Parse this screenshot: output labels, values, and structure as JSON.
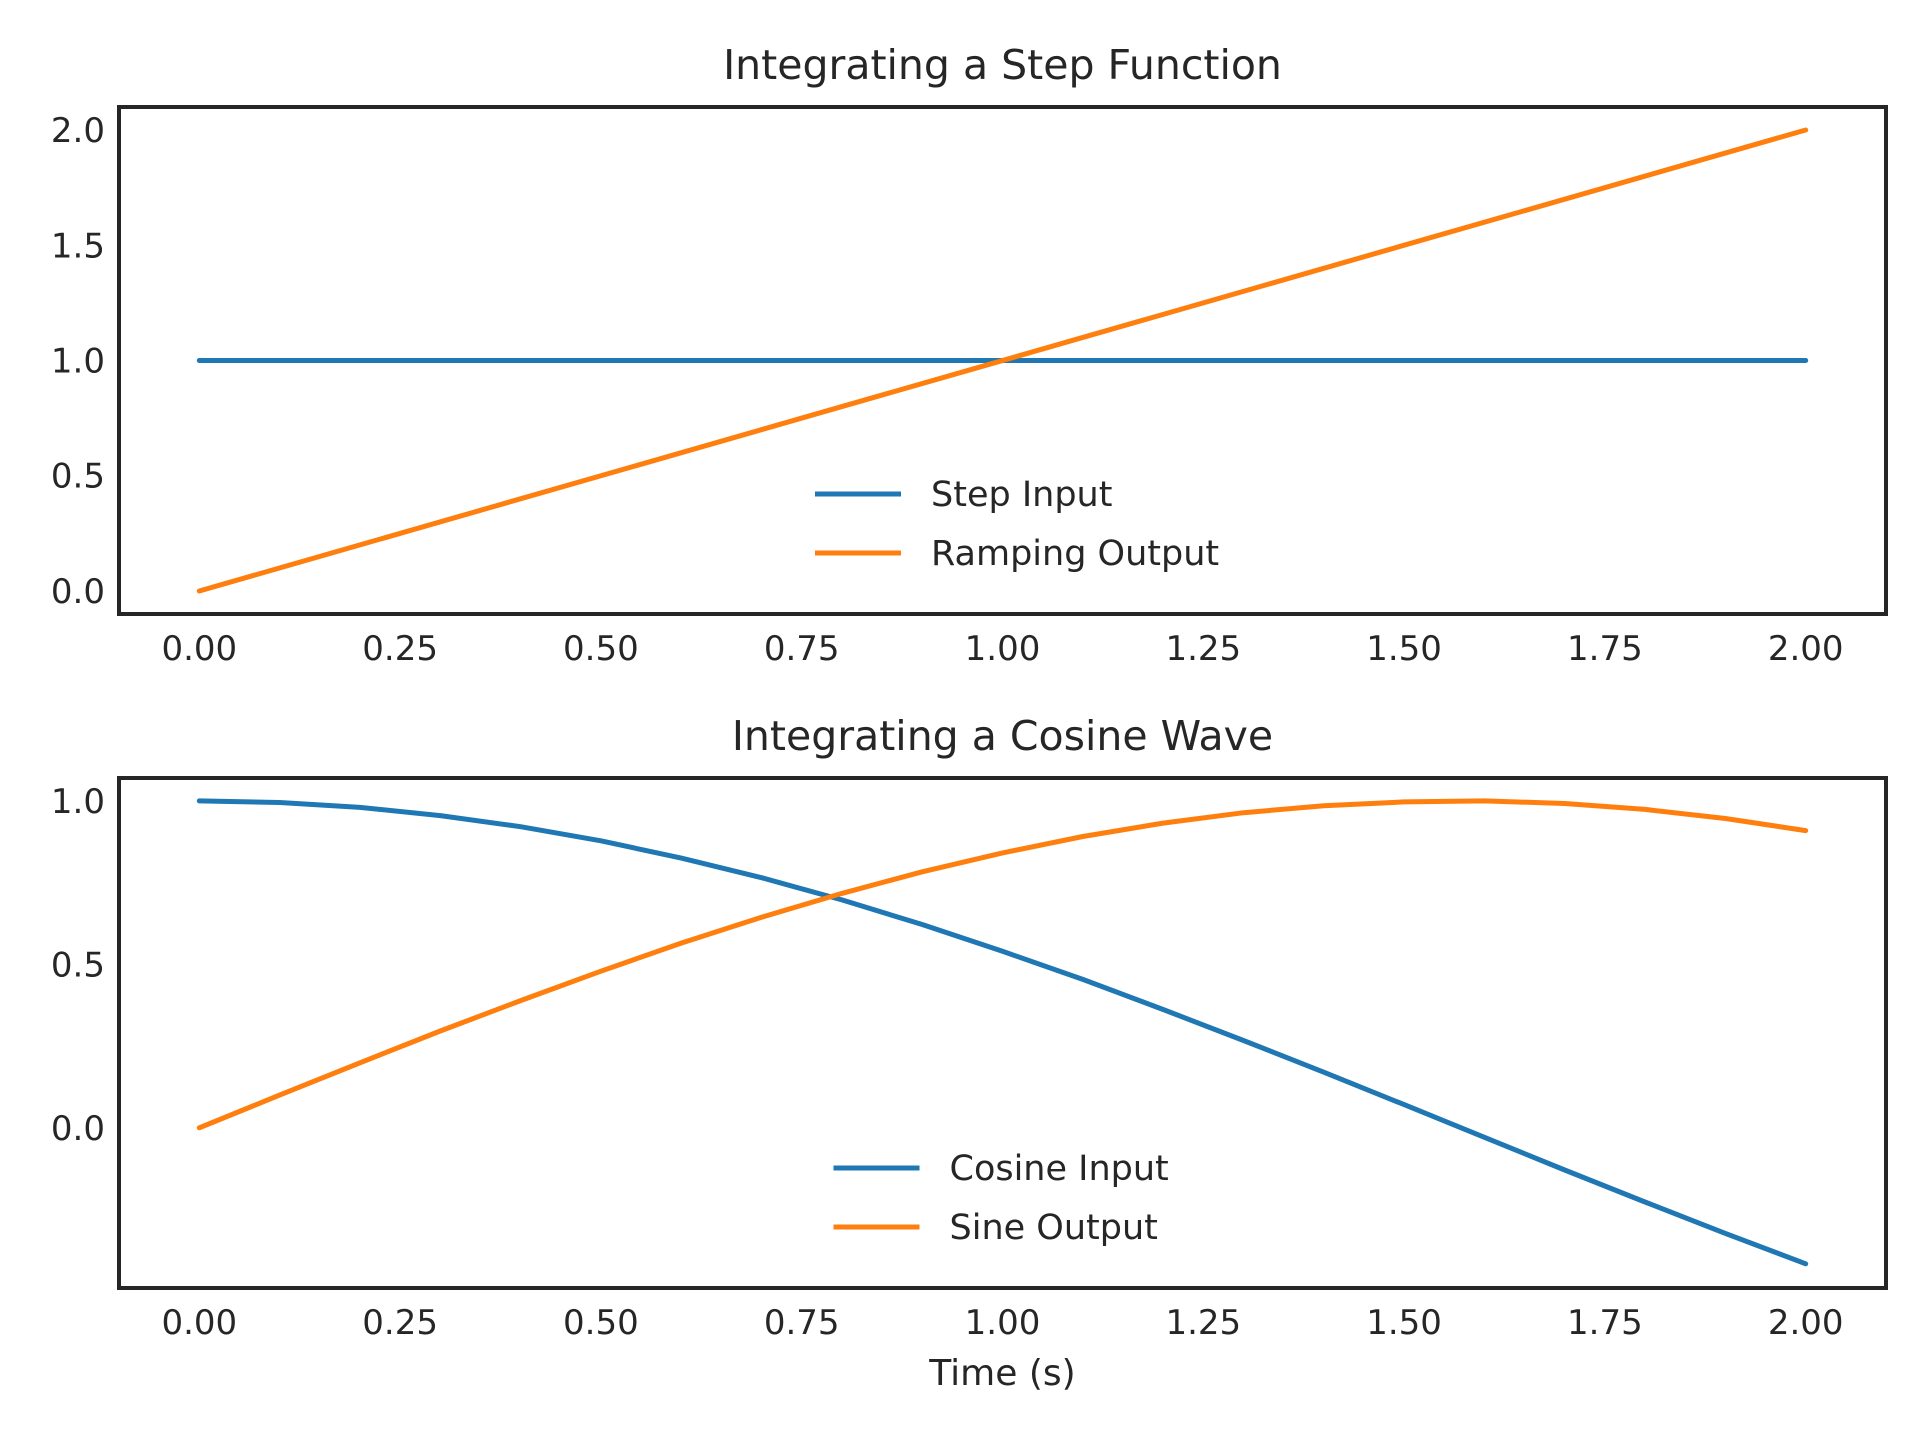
{
  "chart_data": [
    {
      "type": "line",
      "title": "Integrating a Step Function",
      "xlabel": "",
      "ylabel": "",
      "xlim": [
        -0.1,
        2.1
      ],
      "ylim": [
        -0.1,
        2.1
      ],
      "xticks": [
        0.0,
        0.25,
        0.5,
        0.75,
        1.0,
        1.25,
        1.5,
        1.75,
        2.0
      ],
      "xtick_labels": [
        "0.00",
        "0.25",
        "0.50",
        "0.75",
        "1.00",
        "1.25",
        "1.50",
        "1.75",
        "2.00"
      ],
      "yticks": [
        0.0,
        0.5,
        1.0,
        1.5,
        2.0
      ],
      "ytick_labels": [
        "0.0",
        "0.5",
        "1.0",
        "1.5",
        "2.0"
      ],
      "grid": false,
      "legend_position": "lower center",
      "series": [
        {
          "name": "Step Input",
          "color": "#1f77b4",
          "x": [
            0.0,
            2.0
          ],
          "y": [
            1.0,
            1.0
          ]
        },
        {
          "name": "Ramping Output",
          "color": "#ff7f0e",
          "x": [
            0.0,
            2.0
          ],
          "y": [
            0.0,
            2.0
          ]
        }
      ]
    },
    {
      "type": "line",
      "title": "Integrating a Cosine Wave",
      "xlabel": "Time (s)",
      "ylabel": "",
      "xlim": [
        -0.1,
        2.1
      ],
      "ylim": [
        -0.49,
        1.07
      ],
      "xticks": [
        0.0,
        0.25,
        0.5,
        0.75,
        1.0,
        1.25,
        1.5,
        1.75,
        2.0
      ],
      "xtick_labels": [
        "0.00",
        "0.25",
        "0.50",
        "0.75",
        "1.00",
        "1.25",
        "1.50",
        "1.75",
        "2.00"
      ],
      "yticks": [
        0.0,
        0.5,
        1.0
      ],
      "ytick_labels": [
        "0.0",
        "0.5",
        "1.0"
      ],
      "grid": false,
      "legend_position": "lower center",
      "series": [
        {
          "name": "Cosine Input",
          "color": "#1f77b4",
          "x": [
            0.0,
            0.1,
            0.2,
            0.3,
            0.4,
            0.5,
            0.6,
            0.7,
            0.8,
            0.9,
            1.0,
            1.1,
            1.2,
            1.3,
            1.4,
            1.5,
            1.6,
            1.7,
            1.8,
            1.9,
            2.0
          ],
          "y": [
            1.0,
            0.995,
            0.98,
            0.955,
            0.921,
            0.878,
            0.825,
            0.765,
            0.697,
            0.622,
            0.54,
            0.454,
            0.362,
            0.267,
            0.17,
            0.071,
            -0.029,
            -0.129,
            -0.227,
            -0.323,
            -0.416
          ]
        },
        {
          "name": "Sine Output",
          "color": "#ff7f0e",
          "x": [
            0.0,
            0.1,
            0.2,
            0.3,
            0.4,
            0.5,
            0.6,
            0.7,
            0.8,
            0.9,
            1.0,
            1.1,
            1.2,
            1.3,
            1.4,
            1.5,
            1.6,
            1.7,
            1.8,
            1.9,
            2.0
          ],
          "y": [
            0.0,
            0.1,
            0.199,
            0.296,
            0.389,
            0.479,
            0.565,
            0.644,
            0.717,
            0.783,
            0.841,
            0.891,
            0.932,
            0.964,
            0.985,
            0.997,
            1.0,
            0.992,
            0.974,
            0.946,
            0.909
          ]
        }
      ]
    }
  ]
}
